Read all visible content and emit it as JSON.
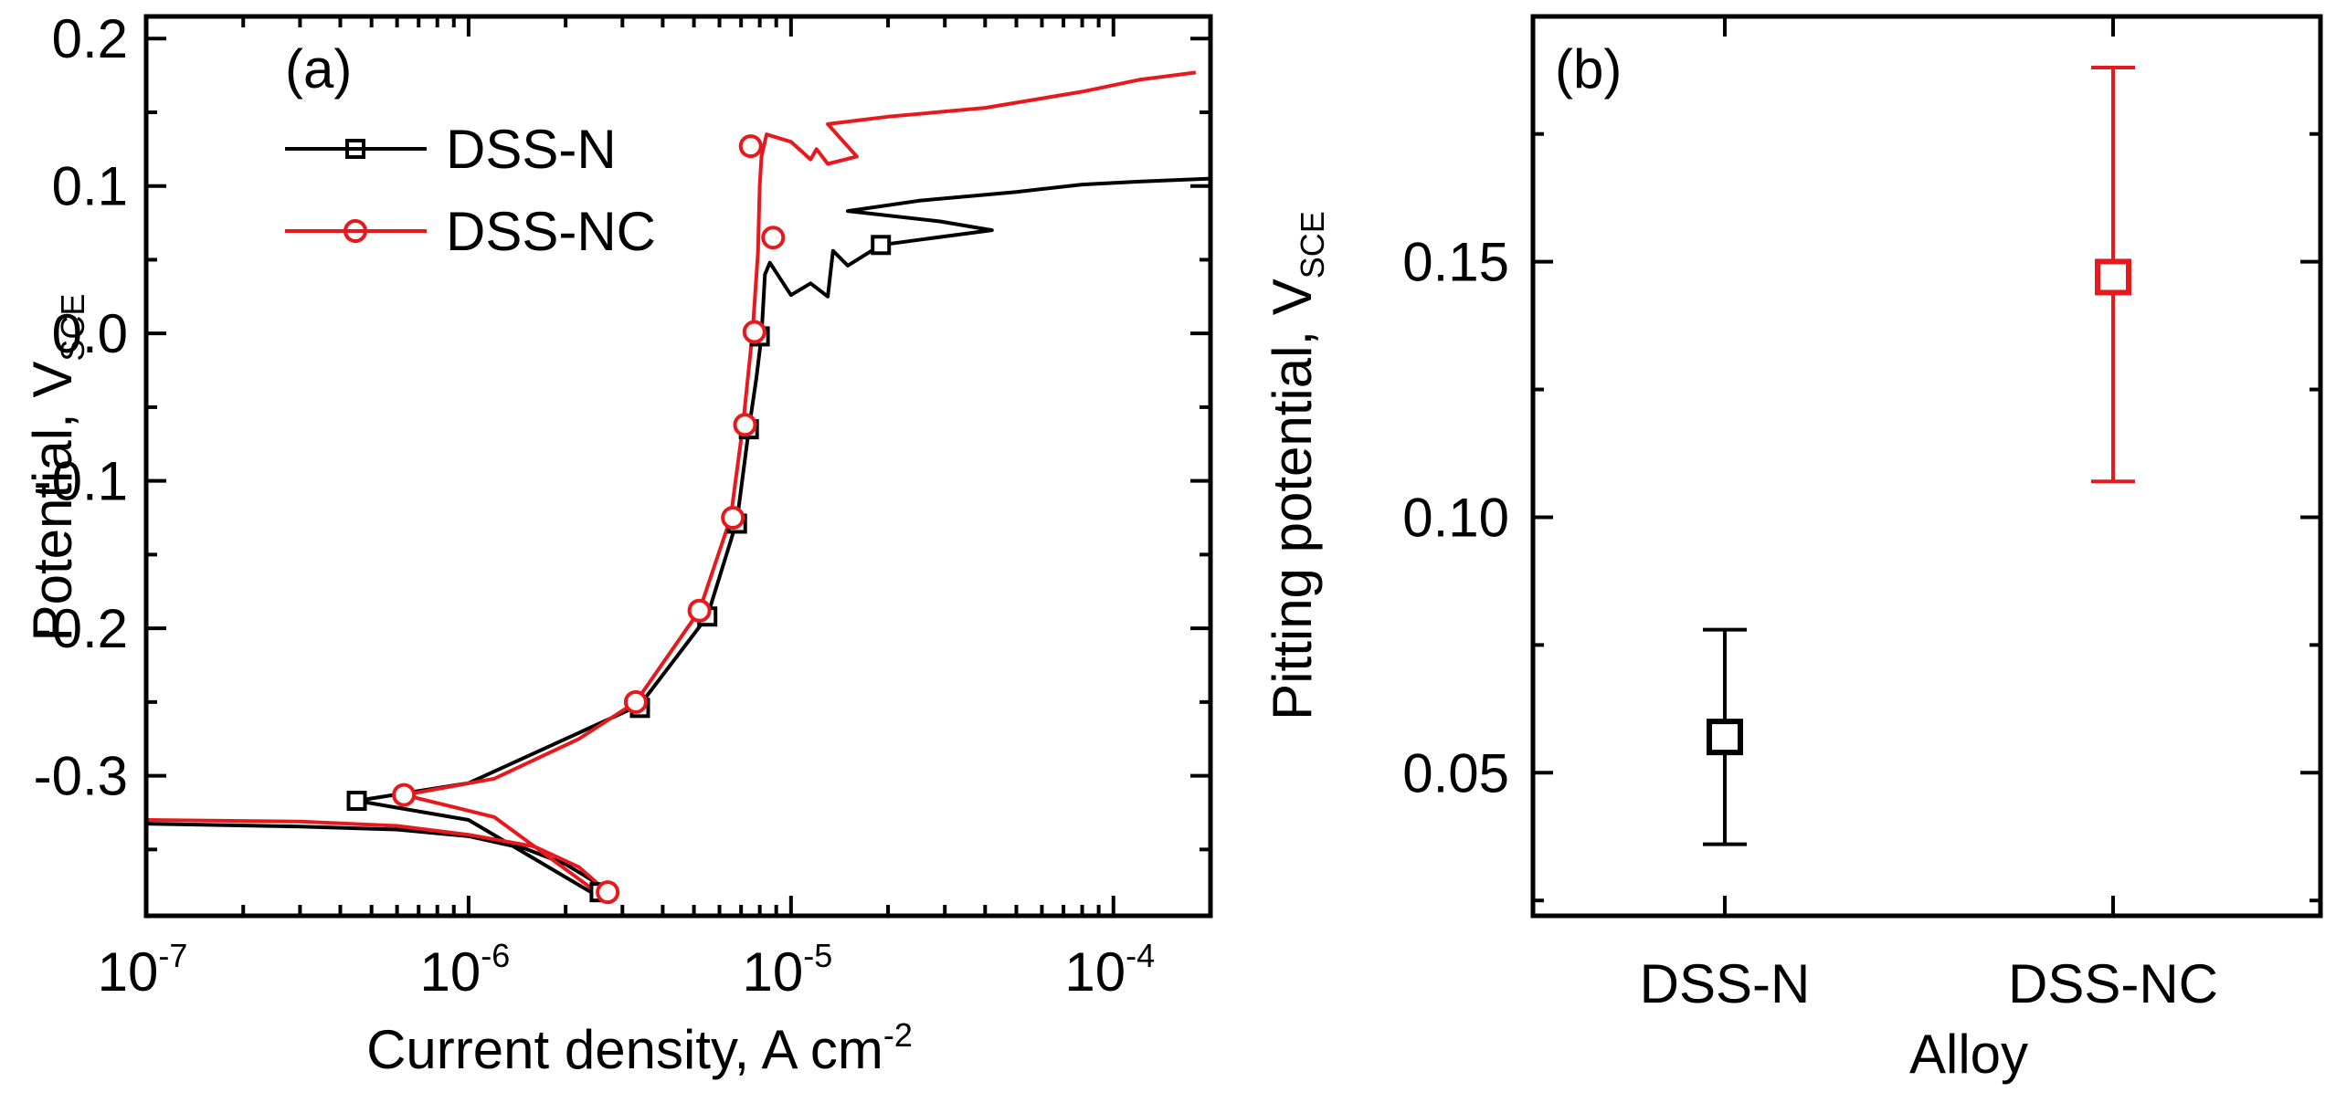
{
  "chart_data": [
    {
      "type": "line",
      "panel_label": "(a)",
      "xlabel": "Current density, A cm",
      "xlabel_sup": "-2",
      "ylabel": "Potential, V",
      "ylabel_sub": "SCE",
      "xscale": "log",
      "xlim": [
        1e-07,
        0.0002
      ],
      "ylim": [
        -0.395,
        0.215
      ],
      "legend_position": "top-left",
      "x_ticks": [
        {
          "value": 1e-07,
          "base": "10",
          "exp": "-7"
        },
        {
          "value": 1e-06,
          "base": "10",
          "exp": "-6"
        },
        {
          "value": 1e-05,
          "base": "10",
          "exp": "-5"
        },
        {
          "value": 0.0001,
          "base": "10",
          "exp": "-4"
        }
      ],
      "y_ticks": [
        {
          "value": -0.3,
          "label": "-0.3"
        },
        {
          "value": -0.2,
          "label": "-0.2"
        },
        {
          "value": -0.1,
          "label": "-0.1"
        },
        {
          "value": 0.0,
          "label": "0.0"
        },
        {
          "value": 0.1,
          "label": "0.1"
        },
        {
          "value": 0.2,
          "label": "0.2"
        }
      ],
      "series": [
        {
          "name": "DSS-N",
          "color": "#000000",
          "marker": "square",
          "points": [
            [
              1e-07,
              -0.3325
            ],
            [
              3e-07,
              -0.3345
            ],
            [
              6e-07,
              -0.3365
            ],
            [
              1e-06,
              -0.341
            ],
            [
              1.5e-06,
              -0.3495
            ],
            [
              2e-06,
              -0.36
            ],
            [
              2.4e-06,
              -0.3705
            ],
            [
              2.6e-06,
              -0.379
            ],
            [
              2.4e-06,
              -0.379
            ],
            [
              1e-06,
              -0.33
            ],
            [
              4.5e-07,
              -0.317
            ],
            [
              1e-06,
              -0.305
            ],
            [
              2e-06,
              -0.275
            ],
            [
              3.4e-06,
              -0.252
            ],
            [
              5.5e-06,
              -0.192
            ],
            [
              6.8e-06,
              -0.127
            ],
            [
              7.4e-06,
              -0.065
            ],
            [
              7.8e-06,
              -0.031
            ],
            [
              8.1e-06,
              -0.002
            ],
            [
              8.3e-06,
              0.04
            ],
            [
              8.6e-06,
              0.048
            ],
            [
              1e-05,
              0.026
            ],
            [
              1.15e-05,
              0.034
            ],
            [
              1.3e-05,
              0.025
            ],
            [
              1.35e-05,
              0.056
            ],
            [
              1.5e-05,
              0.046
            ],
            [
              1.9e-05,
              0.06
            ],
            [
              2.6e-05,
              0.064
            ],
            [
              4.2e-05,
              0.07
            ],
            [
              2.9e-05,
              0.076
            ],
            [
              1.5e-05,
              0.083
            ],
            [
              2.5e-05,
              0.09
            ],
            [
              5e-05,
              0.096
            ],
            [
              8e-05,
              0.101
            ],
            [
              0.00012,
              0.103
            ],
            [
              0.0002,
              0.105
            ]
          ],
          "marker_points": [
            [
              4.5e-07,
              -0.317
            ],
            [
              2.55e-06,
              -0.379
            ],
            [
              3.4e-06,
              -0.254
            ],
            [
              5.5e-06,
              -0.192
            ],
            [
              6.8e-06,
              -0.129
            ],
            [
              7.4e-06,
              -0.065
            ],
            [
              8e-06,
              -0.002
            ],
            [
              1.9e-05,
              0.06
            ]
          ]
        },
        {
          "name": "DSS-NC",
          "color": "#e8191c",
          "marker": "circle",
          "points": [
            [
              1e-07,
              -0.33
            ],
            [
              3e-07,
              -0.331
            ],
            [
              6e-07,
              -0.334
            ],
            [
              1e-06,
              -0.34
            ],
            [
              1.6e-06,
              -0.348
            ],
            [
              2.2e-06,
              -0.362
            ],
            [
              2.7e-06,
              -0.379
            ],
            [
              2.5e-06,
              -0.379
            ],
            [
              1.2e-06,
              -0.328
            ],
            [
              6.3e-07,
              -0.313
            ],
            [
              1.2e-06,
              -0.302
            ],
            [
              2.2e-06,
              -0.275
            ],
            [
              3.3e-06,
              -0.25
            ],
            [
              5.2e-06,
              -0.188
            ],
            [
              6.5e-06,
              -0.125
            ],
            [
              7.1e-06,
              -0.062
            ],
            [
              7.6e-06,
              0.001
            ],
            [
              7.9e-06,
              0.055
            ],
            [
              8e-06,
              0.1
            ],
            [
              8.1e-06,
              0.12
            ],
            [
              8.4e-06,
              0.135
            ],
            [
              1e-05,
              0.13
            ],
            [
              1.15e-05,
              0.118
            ],
            [
              1.2e-05,
              0.125
            ],
            [
              1.3e-05,
              0.115
            ],
            [
              1.6e-05,
              0.12
            ],
            [
              1.3e-05,
              0.142
            ],
            [
              2e-05,
              0.147
            ],
            [
              4e-05,
              0.153
            ],
            [
              8e-05,
              0.164
            ],
            [
              0.00012,
              0.172
            ],
            [
              0.00018,
              0.177
            ]
          ],
          "marker_points": [
            [
              6.3e-07,
              -0.313
            ],
            [
              2.7e-06,
              -0.379
            ],
            [
              3.3e-06,
              -0.25
            ],
            [
              5.2e-06,
              -0.188
            ],
            [
              6.6e-06,
              -0.125
            ],
            [
              7.2e-06,
              -0.062
            ],
            [
              7.7e-06,
              0.001
            ],
            [
              7.5e-06,
              0.127
            ],
            [
              8.8e-06,
              0.065
            ]
          ]
        }
      ]
    },
    {
      "type": "scatter",
      "panel_label": "(b)",
      "xlabel": "Alloy",
      "ylabel": "Pitting potential, V",
      "ylabel_sub": "SCE",
      "ylim": [
        0.022,
        0.198
      ],
      "y_ticks": [
        {
          "value": 0.05,
          "label": "0.05"
        },
        {
          "value": 0.1,
          "label": "0.10"
        },
        {
          "value": 0.15,
          "label": "0.15"
        }
      ],
      "categories": [
        "DSS-N",
        "DSS-NC"
      ],
      "series": [
        {
          "name": "DSS-N",
          "color": "#000000",
          "marker": "square",
          "value": 0.057,
          "err_low": 0.036,
          "err_high": 0.078
        },
        {
          "name": "DSS-NC",
          "color": "#e8191c",
          "marker": "square",
          "value": 0.147,
          "err_low": 0.107,
          "err_high": 0.188
        }
      ]
    }
  ]
}
